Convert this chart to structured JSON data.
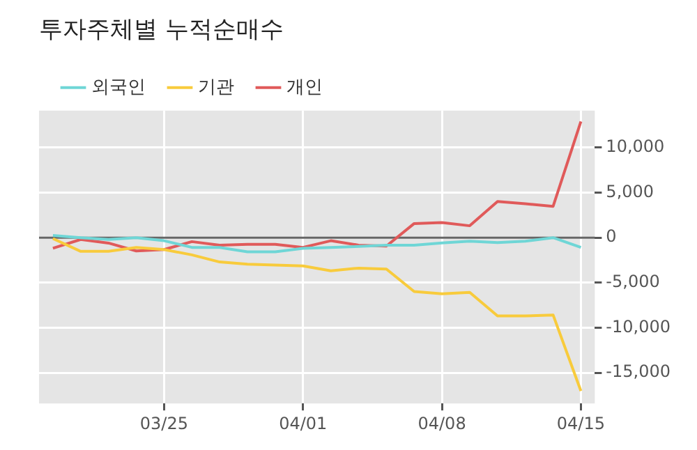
{
  "chart_data": {
    "type": "line",
    "title": "투자주체별 누적순매수",
    "categories": [
      null,
      null,
      null,
      null,
      "03/25",
      null,
      null,
      null,
      null,
      "04/01",
      null,
      null,
      null,
      null,
      "04/08",
      null,
      null,
      null,
      null,
      "04/15"
    ],
    "series": [
      {
        "name": "외국인",
        "color": "#6fd6d6",
        "values": [
          250,
          0,
          -200,
          0,
          -340,
          -1080,
          -1080,
          -1570,
          -1570,
          -1180,
          -1080,
          -980,
          -830,
          -830,
          -590,
          -390,
          -540,
          -390,
          0,
          -1080
        ]
      },
      {
        "name": "기관",
        "color": "#f8cb3c",
        "values": [
          -100,
          -1520,
          -1520,
          -1080,
          -1320,
          -1910,
          -2700,
          -2940,
          -3040,
          -3140,
          -3680,
          -3380,
          -3480,
          -5980,
          -6230,
          -6080,
          -8680,
          -8680,
          -8580,
          -17010
        ]
      },
      {
        "name": "개인",
        "color": "#e05a5a",
        "values": [
          -1180,
          -200,
          -600,
          -1470,
          -1320,
          -440,
          -830,
          -740,
          -740,
          -1080,
          -340,
          -830,
          -930,
          1570,
          1670,
          1320,
          4020,
          3770,
          3480,
          12890
        ]
      }
    ],
    "ylim": [
      -18400,
      14100
    ],
    "yticks": [
      {
        "value": -15000,
        "label": "-15,000"
      },
      {
        "value": -10000,
        "label": "-10,000"
      },
      {
        "value": -5000,
        "label": "-5,000"
      },
      0,
      {
        "value": 5000,
        "label": "5,000"
      },
      {
        "value": 10000,
        "label": "10,000"
      }
    ],
    "ref_lines": [
      {
        "axis": "y",
        "value": 0,
        "color": "#666666"
      }
    ],
    "grid": true,
    "legend": "top left",
    "marker": "none",
    "line_style": "solid"
  }
}
